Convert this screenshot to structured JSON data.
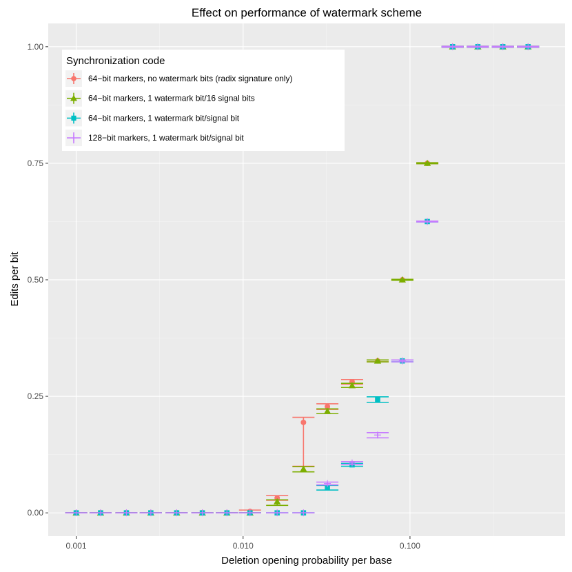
{
  "chart_data": {
    "type": "scatter",
    "title": "Effect on performance of watermark scheme",
    "xlabel": "Deletion opening probability per base",
    "ylabel": "Edits per bit",
    "x_scale": "log10",
    "xlim": [
      0.00068,
      0.85
    ],
    "ylim": [
      -0.05,
      1.05
    ],
    "x_ticks": [
      {
        "value": 0.001,
        "label": "0.001"
      },
      {
        "value": 0.01,
        "label": "0.010"
      },
      {
        "value": 0.1,
        "label": "0.100"
      }
    ],
    "y_ticks": [
      {
        "value": 0,
        "label": "0.00"
      },
      {
        "value": 0.25,
        "label": "0.25"
      },
      {
        "value": 0.5,
        "label": "0.50"
      },
      {
        "value": 0.75,
        "label": "0.75"
      },
      {
        "value": 1,
        "label": "1.00"
      }
    ],
    "grid": true,
    "legend": {
      "title": "Synchronization code",
      "position": "top-left"
    },
    "colors": {
      "panel": "#ebebeb",
      "grid_major": "#ffffff",
      "series": [
        "#f8766d",
        "#7cae00",
        "#00bfc4",
        "#c77cff"
      ]
    },
    "series": [
      {
        "name": "64−bit markers, no watermark bits (radix signature only)",
        "shape": "circle",
        "points": [
          {
            "x": 0.001,
            "y": 0,
            "lo": 0,
            "hi": 0
          },
          {
            "x": 0.0014,
            "y": 0,
            "lo": 0,
            "hi": 0
          },
          {
            "x": 0.002,
            "y": 0,
            "lo": 0,
            "hi": 0
          },
          {
            "x": 0.0028,
            "y": 0,
            "lo": 0,
            "hi": 0
          },
          {
            "x": 0.004,
            "y": 0,
            "lo": 0,
            "hi": 0
          },
          {
            "x": 0.0057,
            "y": 0,
            "lo": 0,
            "hi": 0
          },
          {
            "x": 0.008,
            "y": 0,
            "lo": 0,
            "hi": 0
          },
          {
            "x": 0.011,
            "y": 0.003,
            "lo": 0,
            "hi": 0.006
          },
          {
            "x": 0.016,
            "y": 0.032,
            "lo": 0.027,
            "hi": 0.037
          },
          {
            "x": 0.023,
            "y": 0.194,
            "lo": 0.1,
            "hi": 0.205
          },
          {
            "x": 0.032,
            "y": 0.228,
            "lo": 0.222,
            "hi": 0.234
          },
          {
            "x": 0.045,
            "y": 0.281,
            "lo": 0.276,
            "hi": 0.286
          },
          {
            "x": 0.064,
            "y": 0.326,
            "lo": 0.324,
            "hi": 0.328
          },
          {
            "x": 0.09,
            "y": 0.5,
            "lo": 0.499,
            "hi": 0.501
          },
          {
            "x": 0.127,
            "y": 0.75,
            "lo": 0.749,
            "hi": 0.751
          },
          {
            "x": 0.18,
            "y": 1,
            "lo": 0.999,
            "hi": 1.001
          },
          {
            "x": 0.255,
            "y": 1,
            "lo": 0.999,
            "hi": 1.001
          },
          {
            "x": 0.36,
            "y": 1,
            "lo": 0.999,
            "hi": 1.001
          },
          {
            "x": 0.51,
            "y": 1,
            "lo": 0.999,
            "hi": 1.001
          }
        ]
      },
      {
        "name": "64−bit markers, 1 watermark bit/16 signal bits",
        "shape": "triangle",
        "points": [
          {
            "x": 0.001,
            "y": 0,
            "lo": 0,
            "hi": 0
          },
          {
            "x": 0.0014,
            "y": 0,
            "lo": 0,
            "hi": 0
          },
          {
            "x": 0.002,
            "y": 0,
            "lo": 0,
            "hi": 0
          },
          {
            "x": 0.0028,
            "y": 0,
            "lo": 0,
            "hi": 0
          },
          {
            "x": 0.004,
            "y": 0,
            "lo": 0,
            "hi": 0
          },
          {
            "x": 0.0057,
            "y": 0,
            "lo": 0,
            "hi": 0
          },
          {
            "x": 0.008,
            "y": 0,
            "lo": 0,
            "hi": 0
          },
          {
            "x": 0.011,
            "y": 0,
            "lo": 0,
            "hi": 0
          },
          {
            "x": 0.016,
            "y": 0.024,
            "lo": 0.016,
            "hi": 0.028
          },
          {
            "x": 0.023,
            "y": 0.094,
            "lo": 0.088,
            "hi": 0.099
          },
          {
            "x": 0.032,
            "y": 0.218,
            "lo": 0.213,
            "hi": 0.223
          },
          {
            "x": 0.045,
            "y": 0.273,
            "lo": 0.269,
            "hi": 0.278
          },
          {
            "x": 0.064,
            "y": 0.326,
            "lo": 0.324,
            "hi": 0.328
          },
          {
            "x": 0.09,
            "y": 0.5,
            "lo": 0.499,
            "hi": 0.501
          },
          {
            "x": 0.127,
            "y": 0.75,
            "lo": 0.749,
            "hi": 0.751
          },
          {
            "x": 0.18,
            "y": 1,
            "lo": 0.999,
            "hi": 1.001
          },
          {
            "x": 0.255,
            "y": 1,
            "lo": 0.999,
            "hi": 1.001
          },
          {
            "x": 0.36,
            "y": 1,
            "lo": 0.999,
            "hi": 1.001
          },
          {
            "x": 0.51,
            "y": 1,
            "lo": 0.999,
            "hi": 1.001
          }
        ]
      },
      {
        "name": "64−bit markers, 1 watermark bit/signal bit",
        "shape": "square",
        "points": [
          {
            "x": 0.001,
            "y": 0,
            "lo": 0,
            "hi": 0
          },
          {
            "x": 0.0014,
            "y": 0,
            "lo": 0,
            "hi": 0
          },
          {
            "x": 0.002,
            "y": 0,
            "lo": 0,
            "hi": 0
          },
          {
            "x": 0.0028,
            "y": 0,
            "lo": 0,
            "hi": 0
          },
          {
            "x": 0.004,
            "y": 0,
            "lo": 0,
            "hi": 0
          },
          {
            "x": 0.0057,
            "y": 0,
            "lo": 0,
            "hi": 0
          },
          {
            "x": 0.008,
            "y": 0,
            "lo": 0,
            "hi": 0
          },
          {
            "x": 0.011,
            "y": 0,
            "lo": 0,
            "hi": 0
          },
          {
            "x": 0.016,
            "y": 0,
            "lo": 0,
            "hi": 0
          },
          {
            "x": 0.023,
            "y": 0,
            "lo": 0,
            "hi": 0
          },
          {
            "x": 0.032,
            "y": 0.054,
            "lo": 0.049,
            "hi": 0.059
          },
          {
            "x": 0.045,
            "y": 0.103,
            "lo": 0.1,
            "hi": 0.106
          },
          {
            "x": 0.064,
            "y": 0.243,
            "lo": 0.237,
            "hi": 0.249
          },
          {
            "x": 0.09,
            "y": 0.326,
            "lo": 0.324,
            "hi": 0.328
          },
          {
            "x": 0.127,
            "y": 0.625,
            "lo": 0.624,
            "hi": 0.626
          },
          {
            "x": 0.18,
            "y": 1,
            "lo": 0.999,
            "hi": 1.001
          },
          {
            "x": 0.255,
            "y": 1,
            "lo": 0.999,
            "hi": 1.001
          },
          {
            "x": 0.36,
            "y": 1,
            "lo": 0.999,
            "hi": 1.001
          },
          {
            "x": 0.51,
            "y": 1,
            "lo": 0.999,
            "hi": 1.001
          }
        ]
      },
      {
        "name": "128−bit markers, 1 watermark bit/signal bit",
        "shape": "plus",
        "points": [
          {
            "x": 0.001,
            "y": 0,
            "lo": 0,
            "hi": 0
          },
          {
            "x": 0.0014,
            "y": 0,
            "lo": 0,
            "hi": 0
          },
          {
            "x": 0.002,
            "y": 0,
            "lo": 0,
            "hi": 0
          },
          {
            "x": 0.0028,
            "y": 0,
            "lo": 0,
            "hi": 0
          },
          {
            "x": 0.004,
            "y": 0,
            "lo": 0,
            "hi": 0
          },
          {
            "x": 0.0057,
            "y": 0,
            "lo": 0,
            "hi": 0
          },
          {
            "x": 0.008,
            "y": 0,
            "lo": 0,
            "hi": 0
          },
          {
            "x": 0.011,
            "y": 0,
            "lo": 0,
            "hi": 0
          },
          {
            "x": 0.016,
            "y": 0,
            "lo": 0,
            "hi": 0
          },
          {
            "x": 0.023,
            "y": 0,
            "lo": 0,
            "hi": 0
          },
          {
            "x": 0.032,
            "y": 0.063,
            "lo": 0.06,
            "hi": 0.066
          },
          {
            "x": 0.045,
            "y": 0.107,
            "lo": 0.104,
            "hi": 0.11
          },
          {
            "x": 0.064,
            "y": 0.167,
            "lo": 0.161,
            "hi": 0.172
          },
          {
            "x": 0.09,
            "y": 0.326,
            "lo": 0.324,
            "hi": 0.328
          },
          {
            "x": 0.127,
            "y": 0.625,
            "lo": 0.624,
            "hi": 0.626
          },
          {
            "x": 0.18,
            "y": 1,
            "lo": 0.999,
            "hi": 1.001
          },
          {
            "x": 0.255,
            "y": 1,
            "lo": 0.999,
            "hi": 1.001
          },
          {
            "x": 0.36,
            "y": 1,
            "lo": 0.999,
            "hi": 1.001
          },
          {
            "x": 0.51,
            "y": 1,
            "lo": 0.999,
            "hi": 1.001
          }
        ]
      }
    ]
  }
}
